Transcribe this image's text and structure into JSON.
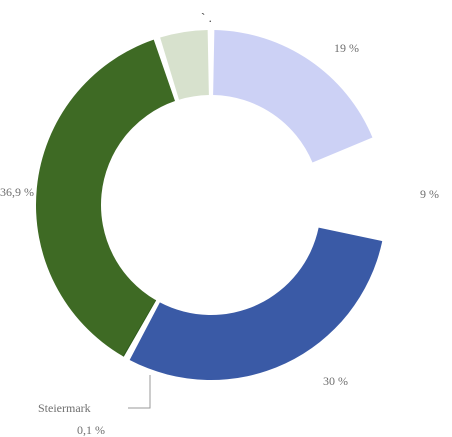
{
  "top_mark": "` .",
  "chart_data": {
    "type": "pie",
    "style": "donut",
    "title": "",
    "slices": [
      {
        "label": "",
        "value_label": "19 %",
        "value": 19,
        "color": "#ccd1f5"
      },
      {
        "label": "",
        "value_label": "9 %",
        "value": 9,
        "color": "#ffffff"
      },
      {
        "label": "",
        "value_label": "30 %",
        "value": 30,
        "color": "#3a5aa6"
      },
      {
        "label": "Steiermark",
        "value_label": "0,1 %",
        "value": 0.1,
        "color": "#2d5a1b"
      },
      {
        "label": "",
        "value_label": "36,9 %",
        "value": 36.9,
        "color": "#3e6a24"
      },
      {
        "label": "",
        "value_label": "",
        "value": 5,
        "color": "#d7e1cd"
      }
    ]
  }
}
